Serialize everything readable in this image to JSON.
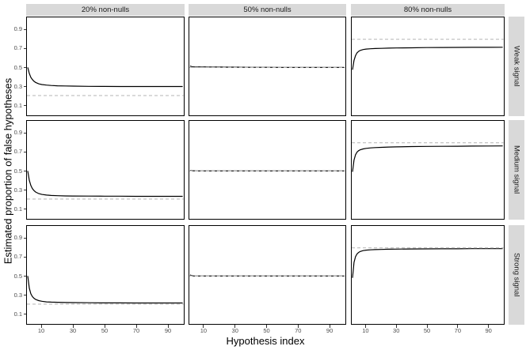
{
  "figure": {
    "y_axis_title": "Estimated proportion of false hypotheses",
    "x_axis_title": "Hypothesis index",
    "col_facets": [
      "20% non-nulls",
      "50% non-nulls",
      "80% non-nulls"
    ],
    "row_facets": [
      "Weak signal",
      "Medium signal",
      "Strong signal"
    ],
    "y_tick_labels": [
      "0.9",
      "0.7",
      "0.5",
      "0.3",
      "0.1"
    ],
    "x_tick_labels": [
      "10",
      "30",
      "50",
      "70",
      "90"
    ],
    "colors": {
      "curve": "#000000",
      "reference_line": "#bdbdbd",
      "strip_bg": "#d9d9d9",
      "panel_border": "#000000",
      "tick_text": "#4d4d4d",
      "title_text": "#000000"
    }
  },
  "chart_data": {
    "type": "line",
    "title": "",
    "xlabel": "Hypothesis index",
    "ylabel": "Estimated proportion of false hypotheses",
    "facet_columns": [
      "20% non-nulls",
      "50% non-nulls",
      "80% non-nulls"
    ],
    "facet_rows": [
      "Weak signal",
      "Medium signal",
      "Strong signal"
    ],
    "x_ticks": [
      10,
      30,
      50,
      70,
      90
    ],
    "y_ticks": [
      0.9,
      0.7,
      0.5,
      0.3,
      0.1
    ],
    "x_range_shown": [
      1,
      100
    ],
    "y_range_shown": [
      0,
      1
    ],
    "grid": "off",
    "legend_position": "none",
    "line_styles": {
      "estimate": "solid black",
      "true_proportion": "dashed light-gray"
    },
    "x": [
      1,
      2,
      3,
      4,
      5,
      6,
      8,
      10,
      13,
      16,
      20,
      25,
      30,
      40,
      50,
      60,
      70,
      80,
      90,
      100
    ],
    "panels": [
      {
        "row": "Weak signal",
        "col": "20% non-nulls",
        "dashed_reference_y": 0.2,
        "solid_curve_y": [
          0.5,
          0.435,
          0.395,
          0.37,
          0.352,
          0.34,
          0.325,
          0.317,
          0.311,
          0.307,
          0.304,
          0.302,
          0.3,
          0.298,
          0.297,
          0.296,
          0.296,
          0.296,
          0.296,
          0.296
        ]
      },
      {
        "row": "Weak signal",
        "col": "50% non-nulls",
        "dashed_reference_y": 0.5,
        "solid_curve_y": [
          0.515,
          0.508,
          0.506,
          0.505,
          0.505,
          0.505,
          0.505,
          0.505,
          0.504,
          0.504,
          0.503,
          0.502,
          0.502,
          0.501,
          0.501,
          0.5,
          0.5,
          0.5,
          0.5,
          0.5
        ]
      },
      {
        "row": "Weak signal",
        "col": "80% non-nulls",
        "dashed_reference_y": 0.8,
        "solid_curve_y": [
          0.475,
          0.575,
          0.625,
          0.655,
          0.67,
          0.68,
          0.69,
          0.695,
          0.699,
          0.701,
          0.703,
          0.705,
          0.707,
          0.709,
          0.711,
          0.712,
          0.713,
          0.714,
          0.714,
          0.715
        ]
      },
      {
        "row": "Medium signal",
        "col": "20% non-nulls",
        "dashed_reference_y": 0.2,
        "solid_curve_y": [
          0.5,
          0.4,
          0.345,
          0.31,
          0.29,
          0.275,
          0.258,
          0.249,
          0.242,
          0.238,
          0.235,
          0.233,
          0.232,
          0.231,
          0.23,
          0.23,
          0.229,
          0.229,
          0.229,
          0.229
        ]
      },
      {
        "row": "Medium signal",
        "col": "50% non-nulls",
        "dashed_reference_y": 0.5,
        "solid_curve_y": [
          0.505,
          0.502,
          0.501,
          0.501,
          0.5,
          0.5,
          0.5,
          0.5,
          0.5,
          0.5,
          0.5,
          0.5,
          0.5,
          0.5,
          0.5,
          0.5,
          0.5,
          0.5,
          0.5,
          0.5
        ]
      },
      {
        "row": "Medium signal",
        "col": "80% non-nulls",
        "dashed_reference_y": 0.8,
        "solid_curve_y": [
          0.49,
          0.615,
          0.672,
          0.7,
          0.715,
          0.724,
          0.734,
          0.74,
          0.745,
          0.748,
          0.751,
          0.754,
          0.756,
          0.759,
          0.761,
          0.762,
          0.763,
          0.764,
          0.765,
          0.766
        ]
      },
      {
        "row": "Strong signal",
        "col": "20% non-nulls",
        "dashed_reference_y": 0.2,
        "solid_curve_y": [
          0.5,
          0.37,
          0.31,
          0.28,
          0.262,
          0.25,
          0.237,
          0.23,
          0.224,
          0.221,
          0.219,
          0.217,
          0.216,
          0.214,
          0.213,
          0.213,
          0.212,
          0.212,
          0.212,
          0.212
        ]
      },
      {
        "row": "Strong signal",
        "col": "50% non-nulls",
        "dashed_reference_y": 0.5,
        "solid_curve_y": [
          0.512,
          0.503,
          0.501,
          0.5,
          0.5,
          0.5,
          0.5,
          0.5,
          0.5,
          0.5,
          0.5,
          0.5,
          0.5,
          0.5,
          0.5,
          0.5,
          0.5,
          0.5,
          0.5,
          0.5
        ]
      },
      {
        "row": "Strong signal",
        "col": "80% non-nulls",
        "dashed_reference_y": 0.8,
        "solid_curve_y": [
          0.48,
          0.645,
          0.705,
          0.735,
          0.75,
          0.76,
          0.77,
          0.775,
          0.779,
          0.781,
          0.783,
          0.785,
          0.786,
          0.788,
          0.789,
          0.79,
          0.79,
          0.791,
          0.791,
          0.791
        ]
      }
    ]
  }
}
